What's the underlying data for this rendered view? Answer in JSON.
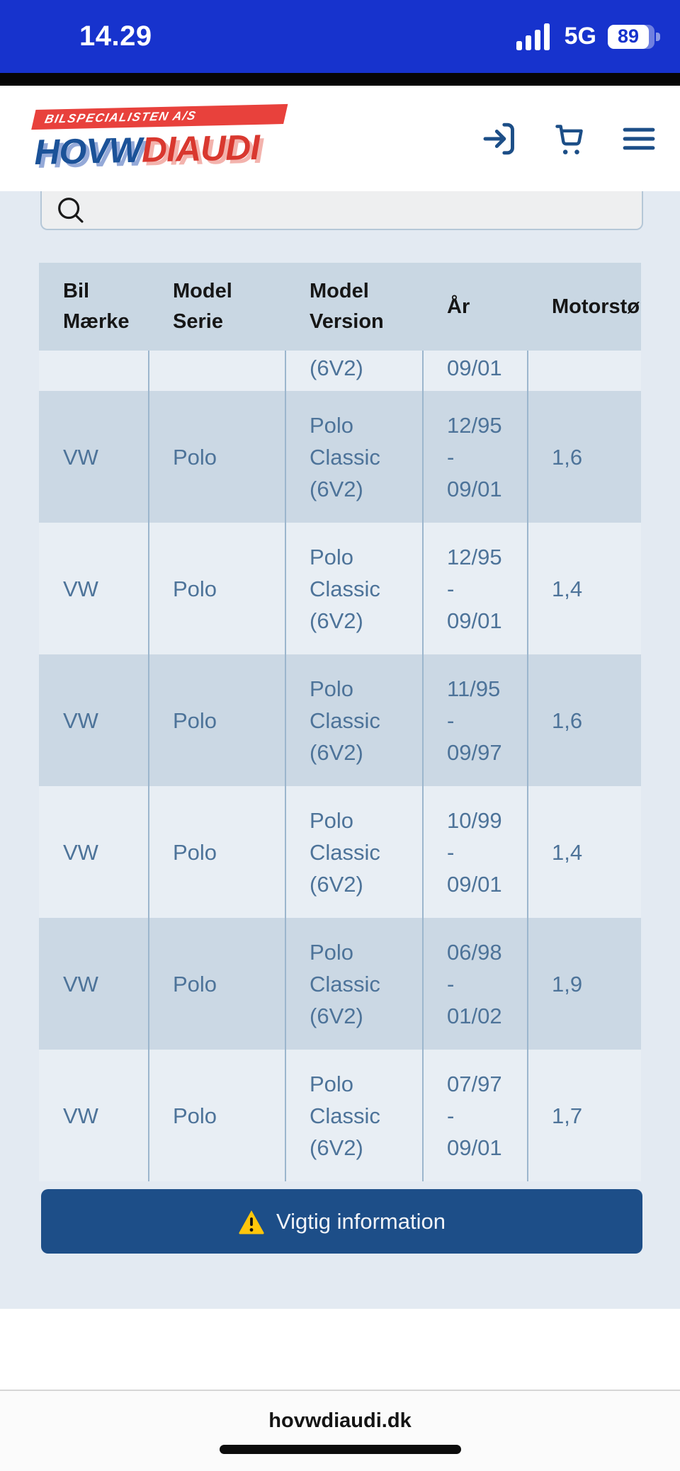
{
  "status_bar": {
    "time": "14.29",
    "network": "5G",
    "battery_percent": "89"
  },
  "header": {
    "banner_text": "BILSPECIALISTEN A/S",
    "brand_blue": "HOVW",
    "brand_red": "DIAUDI",
    "icons": [
      "login-icon",
      "cart-icon",
      "menu-icon"
    ]
  },
  "search": {
    "value": "",
    "placeholder": ""
  },
  "table": {
    "columns": [
      "Bil Mærke",
      "Model Serie",
      "Model Version",
      "År",
      "Motorstørrelse"
    ],
    "partial_row": {
      "version_visible": "(6V2)",
      "year_visible": "09/01"
    },
    "rows": [
      {
        "make": "VW",
        "serie": "Polo",
        "version": "Polo Classic (6V2)",
        "year_from": "12/95",
        "year_sep": "-",
        "year_to": "09/01",
        "engine": "1,6"
      },
      {
        "make": "VW",
        "serie": "Polo",
        "version": "Polo Classic (6V2)",
        "year_from": "12/95",
        "year_sep": "-",
        "year_to": "09/01",
        "engine": "1,4"
      },
      {
        "make": "VW",
        "serie": "Polo",
        "version": "Polo Classic (6V2)",
        "year_from": "11/95",
        "year_sep": "-",
        "year_to": "09/97",
        "engine": "1,6"
      },
      {
        "make": "VW",
        "serie": "Polo",
        "version": "Polo Classic (6V2)",
        "year_from": "10/99",
        "year_sep": "-",
        "year_to": "09/01",
        "engine": "1,4"
      },
      {
        "make": "VW",
        "serie": "Polo",
        "version": "Polo Classic (6V2)",
        "year_from": "06/98",
        "year_sep": "-",
        "year_to": "01/02",
        "engine": "1,9"
      },
      {
        "make": "VW",
        "serie": "Polo",
        "version": "Polo Classic (6V2)",
        "year_from": "07/97",
        "year_sep": "-",
        "year_to": "09/01",
        "engine": "1,7"
      }
    ]
  },
  "info_button": {
    "label": "Vigtig information",
    "icon": "warning-icon"
  },
  "footer": {
    "url_label": "hovwdiaudi.dk"
  },
  "colors": {
    "status_blue": "#1733cd",
    "banner_red": "#e8413c",
    "brand_blue": "#1b5298",
    "brand_red": "#d9382f",
    "icon_blue": "#1c4e87",
    "button_blue": "#1d4e88",
    "page_bg": "#e3eaf2",
    "row_dark": "#cbd8e4",
    "row_light": "#e8eef4",
    "header_row_bg": "#c9d7e3",
    "cell_text": "#4d7399",
    "separator": "#9cb6cd",
    "warning_yellow": "#ffc60b"
  }
}
